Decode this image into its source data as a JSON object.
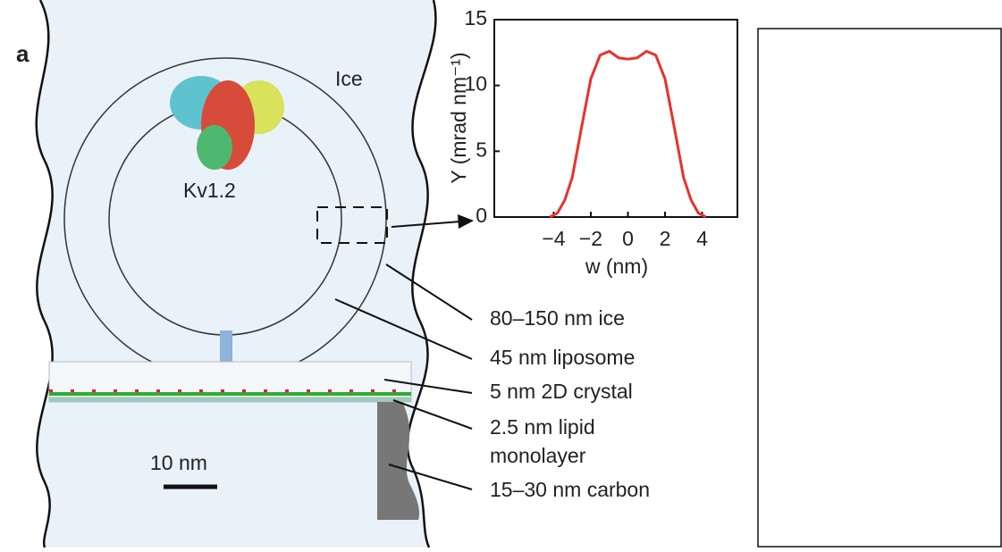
{
  "panel_label": "a",
  "diagram": {
    "ice": "Ice",
    "protein": "Kv1.2",
    "scale_bar": "10 nm",
    "callouts": [
      {
        "lines": [
          "80–150 nm ice"
        ]
      },
      {
        "lines": [
          "45 nm liposome"
        ]
      },
      {
        "lines": [
          "5 nm 2D crystal"
        ]
      },
      {
        "lines": [
          "2.5 nm lipid",
          "monolayer"
        ]
      },
      {
        "lines": [
          "15–30 nm carbon"
        ]
      }
    ]
  },
  "chart_data": {
    "type": "line",
    "x_label": "w (nm)",
    "y_label": "Y (mrad nm⁻¹)",
    "x": [
      -4.2,
      -3.8,
      -3.4,
      -3,
      -2.5,
      -2,
      -1.5,
      -1,
      -0.5,
      0,
      0.5,
      1,
      1.5,
      2,
      2.5,
      3,
      3.4,
      3.8,
      4.2
    ],
    "series": [
      {
        "color": "#e8322c",
        "values": [
          0,
          0.3,
          1.3,
          3,
          6.8,
          10.5,
          12.3,
          12.6,
          12.1,
          12,
          12.1,
          12.6,
          12.3,
          10.5,
          6.8,
          3,
          1.3,
          0.3,
          0
        ]
      }
    ],
    "xlim": [
      -7.2,
      5.9
    ],
    "ylim": [
      0,
      15
    ],
    "xticks": [
      {
        "value": -4,
        "label": "−4"
      },
      {
        "value": -2,
        "label": "−2"
      },
      0,
      2,
      4
    ],
    "yticks": [
      0,
      5,
      10,
      15
    ]
  }
}
